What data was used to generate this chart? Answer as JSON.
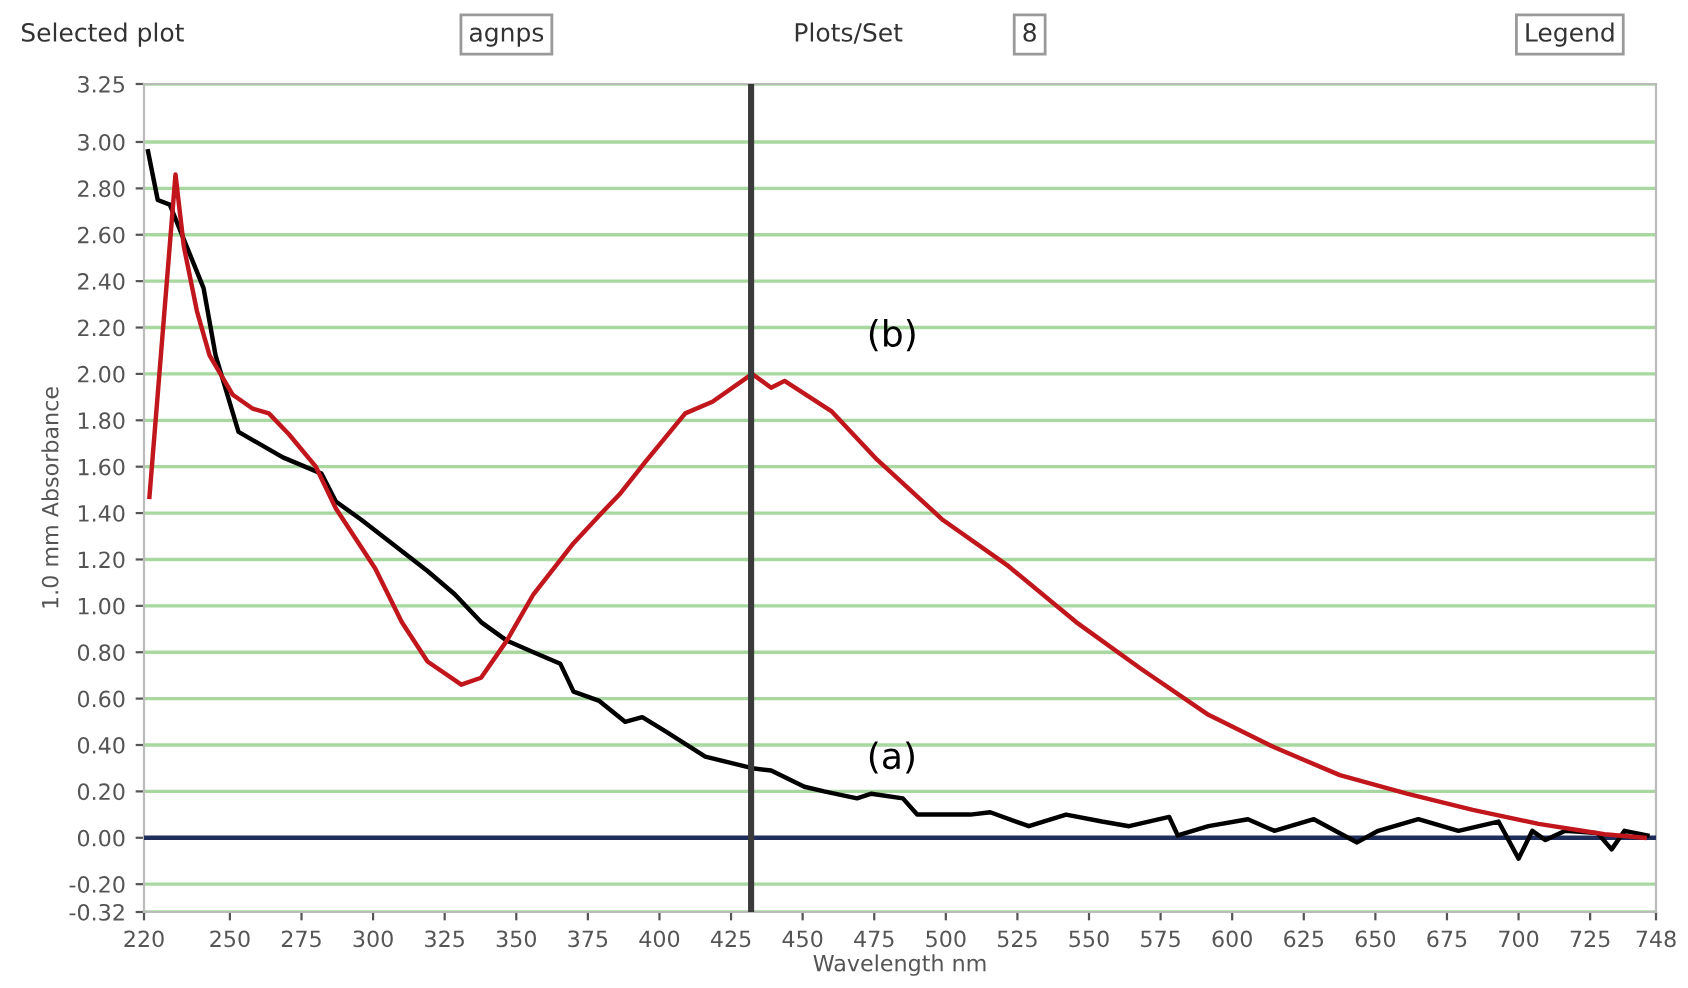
{
  "chart_data": {
    "type": "line",
    "xlabel": "Wavelength nm",
    "ylabel": "1.0 mm Absorbance",
    "xlim": [
      220,
      748
    ],
    "xticks": [
      220,
      250,
      275,
      300,
      325,
      350,
      375,
      400,
      425,
      450,
      475,
      500,
      525,
      550,
      575,
      600,
      625,
      650,
      675,
      700,
      725,
      748
    ],
    "ylim": [
      -0.32,
      3.25
    ],
    "yticks": [
      {
        "value": -0.32,
        "label": "-0.32"
      },
      {
        "value": -0.2,
        "label": "-0.20"
      },
      {
        "value": 0,
        "label": "0.00"
      },
      {
        "value": 0.2,
        "label": "0.20"
      },
      {
        "value": 0.4,
        "label": "0.40"
      },
      {
        "value": 0.6,
        "label": "0.60"
      },
      {
        "value": 0.8,
        "label": "0.80"
      },
      {
        "value": 1,
        "label": "1.00"
      },
      {
        "value": 1.2,
        "label": "1.20"
      },
      {
        "value": 1.4,
        "label": "1.40"
      },
      {
        "value": 1.6,
        "label": "1.60"
      },
      {
        "value": 1.8,
        "label": "1.80"
      },
      {
        "value": 2,
        "label": "2.00"
      },
      {
        "value": 2.2,
        "label": "2.20"
      },
      {
        "value": 2.4,
        "label": "2.40"
      },
      {
        "value": 2.6,
        "label": "2.60"
      },
      {
        "value": 2.8,
        "label": "2.80"
      },
      {
        "value": 3,
        "label": "3.00"
      },
      3.25
    ],
    "grid": "y",
    "legend": false,
    "marker": "none",
    "line_style": "solid",
    "series": [
      {
        "color": "#000000",
        "x": [
          221.4,
          224.8,
          229,
          240.8,
          245,
          253,
          268.5,
          282,
          287,
          296,
          319,
          328.5,
          337.7,
          346.7,
          356,
          365.4,
          370,
          379,
          388,
          394,
          402,
          416,
          432.4,
          439,
          450.6,
          457.5,
          469,
          474,
          485,
          490,
          508.6,
          515.5,
          529,
          542,
          554.5,
          564,
          578,
          581,
          591.7,
          605.5,
          614.7,
          628.5,
          643.6,
          651,
          665,
          679,
          693,
          700,
          704.8,
          709.4,
          716.3,
          727.6,
          732.5,
          737,
          745
        ],
        "values": [
          2.96,
          2.75,
          2.73,
          2.37,
          2.08,
          1.75,
          1.64,
          1.57,
          1.45,
          1.37,
          1.15,
          1.05,
          0.93,
          0.85,
          0.8,
          0.75,
          0.63,
          0.59,
          0.5,
          0.52,
          0.46,
          0.35,
          0.3,
          0.29,
          0.22,
          0.2,
          0.17,
          0.19,
          0.17,
          0.1,
          0.1,
          0.11,
          0.05,
          0.1,
          0.07,
          0.05,
          0.09,
          0.01,
          0.05,
          0.08,
          0.03,
          0.08,
          -0.02,
          0.03,
          0.08,
          0.03,
          0.07,
          -0.09,
          0.03,
          -0.01,
          0.03,
          0.02,
          -0.05,
          0.03,
          0.01
        ]
      },
      {
        "color": "#c0161c",
        "x": [
          221.9,
          231,
          233.9,
          238.5,
          242.9,
          251,
          258,
          263.6,
          270.6,
          280,
          287,
          300.8,
          310,
          319,
          330.8,
          337.7,
          346.7,
          356,
          370,
          379,
          386,
          395,
          409,
          418.5,
          432.4,
          439,
          443.7,
          460,
          476,
          499,
          522,
          545.5,
          568,
          591.7,
          614.7,
          637.6,
          661,
          684,
          707,
          730,
          744
        ],
        "values": [
          1.47,
          2.86,
          2.55,
          2.27,
          2.08,
          1.91,
          1.85,
          1.83,
          1.74,
          1.6,
          1.42,
          1.16,
          0.93,
          0.76,
          0.66,
          0.69,
          0.85,
          1.05,
          1.27,
          1.39,
          1.48,
          1.62,
          1.83,
          1.88,
          2.0,
          1.94,
          1.97,
          1.84,
          1.63,
          1.37,
          1.17,
          0.93,
          0.73,
          0.53,
          0.39,
          0.27,
          0.19,
          0.12,
          0.06,
          0.015,
          0.0
        ]
      }
    ],
    "ref_lines": [
      {
        "axis": "y",
        "value": 0,
        "color": "#1f2d5a"
      },
      {
        "axis": "x",
        "value": 432,
        "color": "#3a3a3a"
      }
    ],
    "annotations": [
      "(a)",
      "(b)",
      "Selected plot",
      "agnps",
      "Plots/Set",
      "8",
      "Legend"
    ]
  }
}
